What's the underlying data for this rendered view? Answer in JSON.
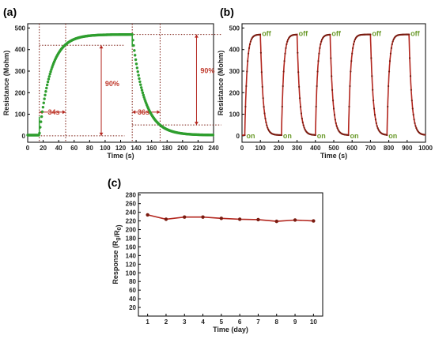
{
  "colors": {
    "green": "#2e9e2e",
    "red": "#b3261e",
    "dark_red": "#7a1b10",
    "annotation_green": "#6a9a2a"
  },
  "chart_data": [
    {
      "panel": "(a)",
      "type": "scatter",
      "xlabel": "Time (s)",
      "ylabel": "Resistance (Mohm)",
      "xlim": [
        0,
        240
      ],
      "ylim": [
        -30,
        520
      ],
      "xticks": [
        0,
        20,
        40,
        60,
        80,
        100,
        120,
        140,
        160,
        180,
        200,
        220,
        240
      ],
      "yticks": [
        0,
        100,
        200,
        300,
        400,
        500
      ],
      "baseline": 3,
      "plateau": 470,
      "on_time": 15,
      "off_time": 135,
      "annotations": {
        "rise_time": "34s",
        "fall_time": "36s",
        "percent_left": "90%",
        "percent_right": "90%"
      },
      "series": [
        {
          "values_sampled": [
            [
              0,
              3
            ],
            [
              15,
              3
            ],
            [
              20,
              150
            ],
            [
              30,
              300
            ],
            [
              49,
              423
            ],
            [
              60,
              445
            ],
            [
              80,
              462
            ],
            [
              100,
              468
            ],
            [
              120,
              470
            ],
            [
              135,
              470
            ],
            [
              138,
              350
            ],
            [
              145,
              220
            ],
            [
              160,
              100
            ],
            [
              171,
              50
            ],
            [
              190,
              22
            ],
            [
              210,
              10
            ],
            [
              240,
              5
            ]
          ]
        }
      ]
    },
    {
      "panel": "(b)",
      "type": "line",
      "xlabel": "Time (s)",
      "ylabel": "Resistance (Mohm)",
      "xlim": [
        0,
        1000
      ],
      "ylim": [
        -30,
        520
      ],
      "xticks": [
        0,
        100,
        200,
        300,
        400,
        500,
        600,
        700,
        800,
        900,
        1000
      ],
      "yticks": [
        0,
        100,
        200,
        300,
        400,
        500
      ],
      "cycles": [
        {
          "on": 15,
          "off": 100
        },
        {
          "on": 215,
          "off": 300
        },
        {
          "on": 400,
          "off": 480
        },
        {
          "on": 580,
          "off": 700
        },
        {
          "on": 790,
          "off": 910
        }
      ],
      "labels": {
        "on": "on",
        "off": "off"
      }
    },
    {
      "panel": "(c)",
      "type": "line",
      "xlabel": "Time (day)",
      "ylabel": "Response (Rg/R0)",
      "xlim": [
        0.5,
        10.5
      ],
      "ylim": [
        0,
        285
      ],
      "xticks": [
        1,
        2,
        3,
        4,
        5,
        6,
        7,
        8,
        9,
        10
      ],
      "yticks": [
        20,
        40,
        60,
        80,
        100,
        120,
        140,
        160,
        180,
        200,
        220,
        240,
        260,
        280
      ],
      "x": [
        1,
        2,
        3,
        4,
        5,
        6,
        7,
        8,
        9,
        10
      ],
      "values": [
        234,
        224,
        229,
        229,
        226,
        224,
        223,
        219,
        222,
        220
      ]
    }
  ],
  "labels": {
    "a": "(a)",
    "b": "(b)",
    "c": "(c)"
  }
}
